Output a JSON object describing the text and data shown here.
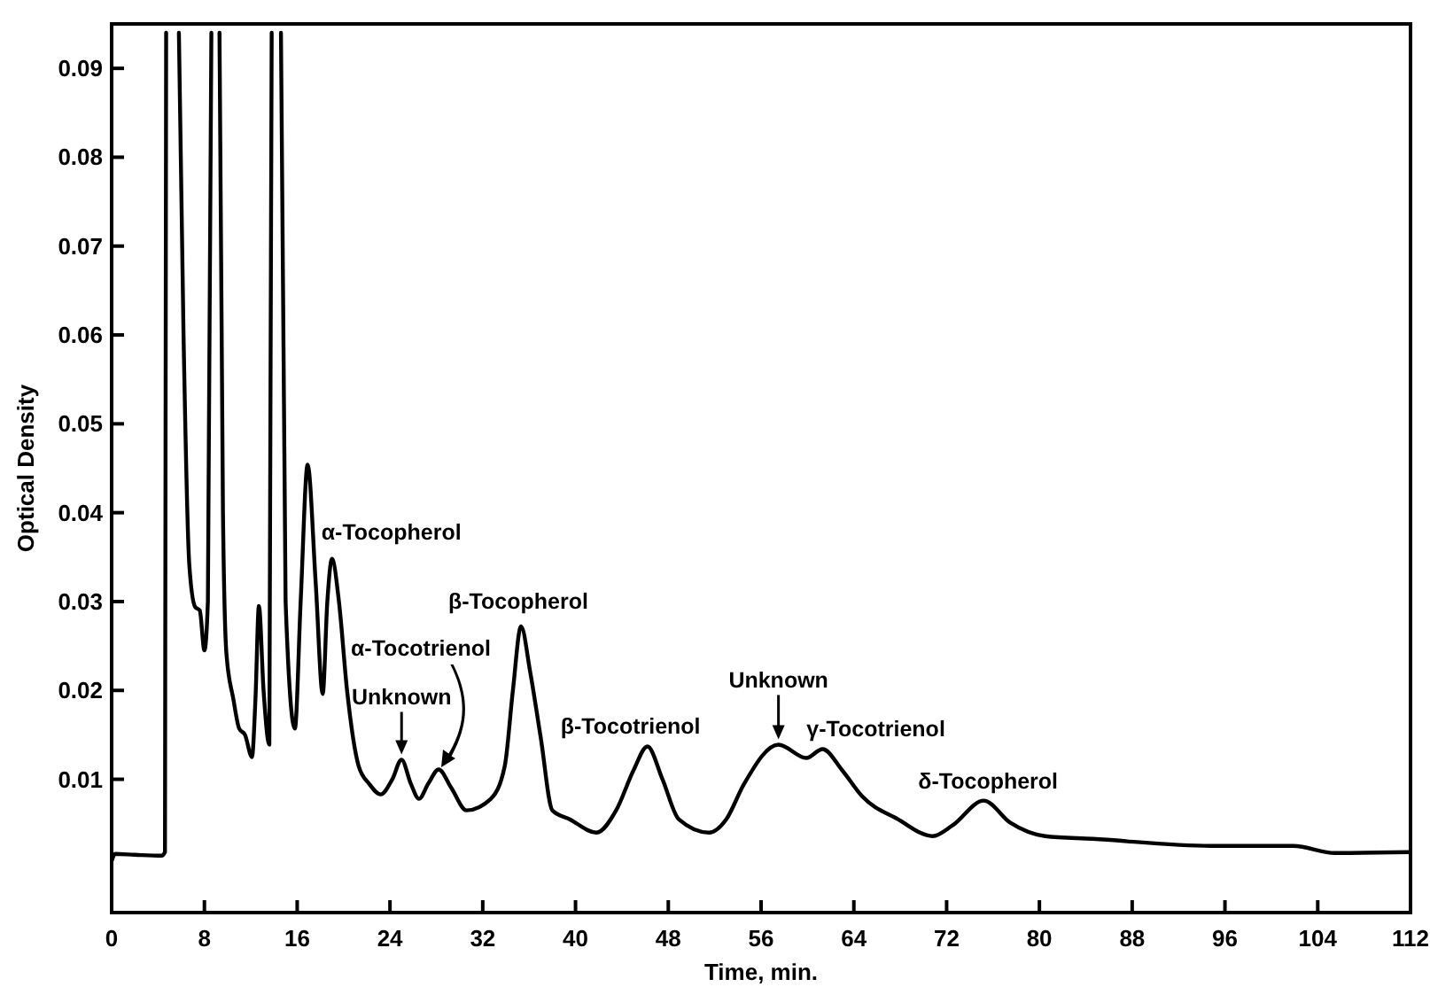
{
  "chart_data": {
    "type": "line",
    "xlabel": "Time, min.",
    "ylabel": "Optical Density",
    "xlim": [
      0,
      112
    ],
    "ylim": [
      -0.005,
      0.095
    ],
    "xticks": [
      0,
      8,
      16,
      24,
      32,
      40,
      48,
      56,
      64,
      72,
      80,
      88,
      96,
      104,
      112
    ],
    "yticks": [
      0.01,
      0.02,
      0.03,
      0.04,
      0.05,
      0.06,
      0.07,
      0.08,
      0.09
    ],
    "series": [
      {
        "color": "#000000",
        "x": [
          0,
          0.3,
          2,
          4.3,
          4.6,
          4.7,
          5.0,
          5.8,
          6.2,
          6.7,
          7.2,
          7.6,
          8.0,
          8.3,
          8.6,
          8.9,
          9.3,
          9.6,
          9.9,
          10.5,
          11.0,
          11.5,
          12.1,
          12.4,
          12.7,
          13.1,
          13.6,
          13.8,
          14.2,
          14.6,
          15.0,
          15.8,
          16.3,
          16.9,
          17.6,
          18.2,
          18.6,
          19.0,
          19.6,
          20.3,
          21.3,
          22.2,
          23.2,
          24.2,
          25.0,
          25.8,
          26.5,
          27.3,
          28.2,
          29.3,
          30.6,
          32.7,
          33.9,
          34.6,
          35.3,
          36.1,
          37.0,
          38.0,
          39.5,
          41.8,
          43.5,
          45.0,
          46.2,
          47.5,
          48.9,
          51.5,
          53.0,
          54.5,
          57.5,
          59.9,
          61.3,
          63.0,
          64.7,
          67.8,
          70.8,
          72.5,
          75.2,
          77.5,
          80.5,
          84.6,
          94.8,
          101.9,
          105.5,
          112
        ],
        "values": [
          0.0008,
          0.0016,
          0.0015,
          0.0014,
          0.0018,
          0.094,
          null,
          0.094,
          0.06,
          0.0341,
          0.0294,
          0.029,
          0.0245,
          0.03,
          0.094,
          null,
          0.094,
          0.04,
          0.0241,
          0.019,
          0.0157,
          0.015,
          0.0125,
          0.019,
          0.0295,
          0.02,
          0.0139,
          0.094,
          null,
          0.094,
          0.03,
          0.0157,
          0.03,
          0.0454,
          0.032,
          0.0196,
          0.03,
          0.0348,
          0.03,
          0.02,
          0.0115,
          0.0095,
          0.0083,
          0.01,
          0.0122,
          0.0095,
          0.0078,
          0.0095,
          0.0111,
          0.009,
          0.0065,
          0.0078,
          0.0115,
          0.02,
          0.0272,
          0.022,
          0.0147,
          0.0065,
          0.0055,
          0.004,
          0.0065,
          0.011,
          0.0137,
          0.01,
          0.0055,
          0.004,
          0.0055,
          0.0094,
          0.0139,
          0.0124,
          0.0134,
          0.011,
          0.0081,
          0.0055,
          0.0036,
          0.0048,
          0.0076,
          0.0051,
          0.0036,
          0.0033,
          0.0025,
          0.0025,
          0.0017,
          0.0018
        ]
      }
    ],
    "annotations": [
      {
        "text": "α-Tocopherol",
        "x": 19.0,
        "y": 0.0348
      },
      "α-Tocotrienol",
      {
        "text": "Unknown",
        "x": 25.0,
        "y": 0.0122
      },
      {
        "text": "β-Tocopherol",
        "x": 35.3,
        "y": 0.0272
      },
      {
        "text": "β-Tocotrienol",
        "x": 46.2,
        "y": 0.0137
      },
      {
        "text": "Unknown",
        "x": 57.5,
        "y": 0.0139
      },
      {
        "text": "γ-Tocotrienol",
        "x": 61.3,
        "y": 0.0134
      },
      {
        "text": "δ-Tocopherol",
        "x": 75.2,
        "y": 0.0076
      }
    ]
  }
}
